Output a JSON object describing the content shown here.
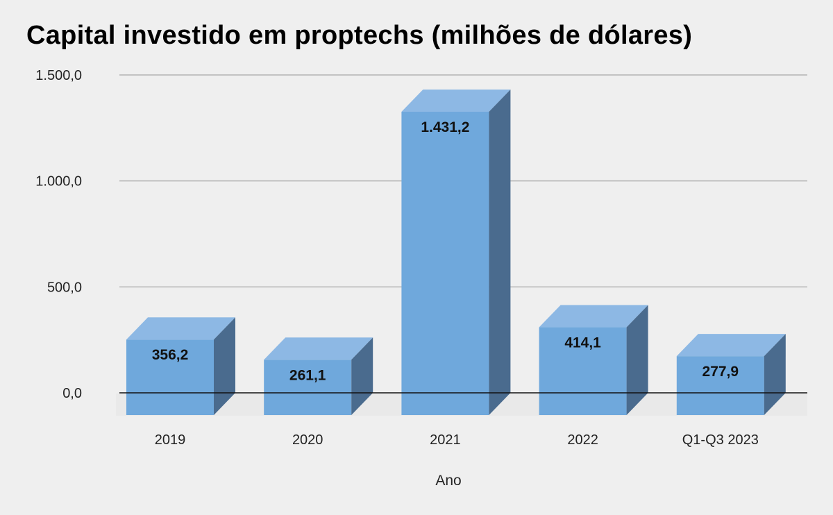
{
  "chart_data": {
    "type": "bar",
    "title": "Capital investido em proptechs (milhões de dólares)",
    "xlabel": "Ano",
    "ylabel": "",
    "categories": [
      "2019",
      "2020",
      "2021",
      "2022",
      "Q1-Q3 2023"
    ],
    "values": [
      356.2,
      261.1,
      1431.2,
      414.1,
      277.9
    ],
    "value_labels": [
      "356,2",
      "261,1",
      "1.431,2",
      "414,1",
      "277,9"
    ],
    "yticks": [
      0,
      500,
      1000,
      1500
    ],
    "ytick_labels": [
      "0,0",
      "500,0",
      "1.000,0",
      "1.500,0"
    ],
    "ylim": [
      0,
      1500
    ],
    "grid": true,
    "legend": "none",
    "style": "3d-column",
    "colors": {
      "front": "#6fa8dc",
      "top": "#8db8e4",
      "side": "#4a6b8e",
      "grid": "#b4b4b4",
      "baseline": "#111111",
      "background": "#efefef"
    }
  }
}
